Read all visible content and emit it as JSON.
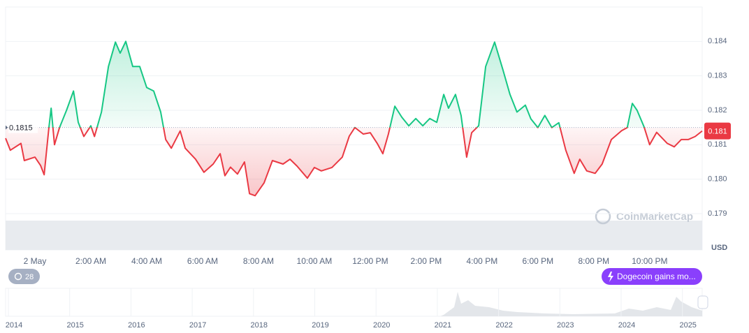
{
  "chart_data": {
    "type": "line",
    "x": [
      -1.05,
      -0.88,
      -0.5,
      -0.38,
      0,
      0.2,
      0.33,
      0.5,
      0.58,
      0.7,
      0.88,
      1.13,
      1.38,
      1.55,
      1.75,
      2,
      2.13,
      2.38,
      2.63,
      2.88,
      3.05,
      3.25,
      3.5,
      3.75,
      4,
      4.25,
      4.5,
      4.68,
      4.88,
      5.2,
      5.38,
      5.75,
      6.05,
      6.38,
      6.63,
      6.8,
      7,
      7.25,
      7.5,
      7.68,
      7.88,
      8.2,
      8.5,
      8.88,
      9.13,
      9.38,
      9.75,
      10,
      10.25,
      10.63,
      11,
      11.25,
      11.45,
      11.75,
      12,
      12.25,
      12.45,
      12.65,
      12.88,
      13.13,
      13.38,
      13.63,
      13.88,
      14.13,
      14.38,
      14.63,
      14.8,
      15.05,
      15.25,
      15.45,
      15.63,
      15.88,
      16.13,
      16.45,
      16.75,
      17,
      17.25,
      17.55,
      17.75,
      18,
      18.25,
      18.5,
      18.75,
      19,
      19.3,
      19.5,
      19.75,
      20.05,
      20.3,
      20.63,
      21,
      21.2,
      21.38,
      21.55,
      21.8,
      22,
      22.25,
      22.63,
      22.88,
      23.13,
      23.38,
      23.63,
      23.88
    ],
    "values": [
      0.18119,
      0.18084,
      0.18104,
      0.18054,
      0.18064,
      0.1804,
      0.18013,
      0.1815,
      0.18206,
      0.181,
      0.1815,
      0.182,
      0.18256,
      0.18165,
      0.18124,
      0.18155,
      0.18124,
      0.18195,
      0.18327,
      0.18398,
      0.18366,
      0.184,
      0.18327,
      0.18327,
      0.18266,
      0.18256,
      0.18195,
      0.18115,
      0.1809,
      0.1814,
      0.1809,
      0.18058,
      0.1802,
      0.18044,
      0.18074,
      0.1801,
      0.18035,
      0.18015,
      0.1805,
      0.17958,
      0.17952,
      0.17989,
      0.18054,
      0.18044,
      0.18058,
      0.18038,
      0.18003,
      0.18034,
      0.18024,
      0.18034,
      0.18064,
      0.18125,
      0.1815,
      0.18131,
      0.18135,
      0.18104,
      0.18074,
      0.18131,
      0.18212,
      0.1818,
      0.18155,
      0.18176,
      0.18155,
      0.18176,
      0.18165,
      0.18246,
      0.18206,
      0.18246,
      0.18185,
      0.18064,
      0.18135,
      0.18155,
      0.18327,
      0.18398,
      0.18317,
      0.18246,
      0.18195,
      0.18215,
      0.18175,
      0.1815,
      0.18185,
      0.1815,
      0.18164,
      0.18084,
      0.18017,
      0.18058,
      0.18024,
      0.18017,
      0.18044,
      0.18115,
      0.18141,
      0.1815,
      0.1822,
      0.182,
      0.18152,
      0.181,
      0.18136,
      0.18104,
      0.18094,
      0.18115,
      0.18115,
      0.18124,
      0.1814
    ],
    "up_color": "#16c784",
    "down_color": "#ea3943",
    "reference": 0.1815,
    "current": {
      "value": 0.1814,
      "label": "0.181"
    },
    "xlim": [
      -1.05,
      23.88
    ],
    "xticks": [
      {
        "value": 0,
        "label": "2 May"
      },
      {
        "value": 2,
        "label": "2:00 AM"
      },
      {
        "value": 4,
        "label": "4:00 AM"
      },
      {
        "value": 6,
        "label": "6:00 AM"
      },
      {
        "value": 8,
        "label": "8:00 AM"
      },
      {
        "value": 10,
        "label": "10:00 AM"
      },
      {
        "value": 12,
        "label": "12:00 PM"
      },
      {
        "value": 14,
        "label": "2:00 PM"
      },
      {
        "value": 16,
        "label": "4:00 PM"
      },
      {
        "value": 18,
        "label": "6:00 PM"
      },
      {
        "value": 20,
        "label": "8:00 PM"
      },
      {
        "value": 22,
        "label": "10:00 PM"
      }
    ],
    "ylim": [
      0.179,
      0.185
    ],
    "yticks": [
      0.179,
      {
        "value": 0.18,
        "label": "0.180"
      },
      0.181,
      0.182,
      0.183,
      0.184
    ],
    "y_unit": "USD",
    "grid": true
  },
  "watermark": "CoinMarketCap",
  "history_button": "28",
  "news_chip": "Dogecoin gains mo...",
  "navigator": {
    "years": [
      "2014",
      "2015",
      "2016",
      "2017",
      "2018",
      "2019",
      "2020",
      "2021",
      "2022",
      "2023",
      "2024",
      "2025"
    ]
  }
}
